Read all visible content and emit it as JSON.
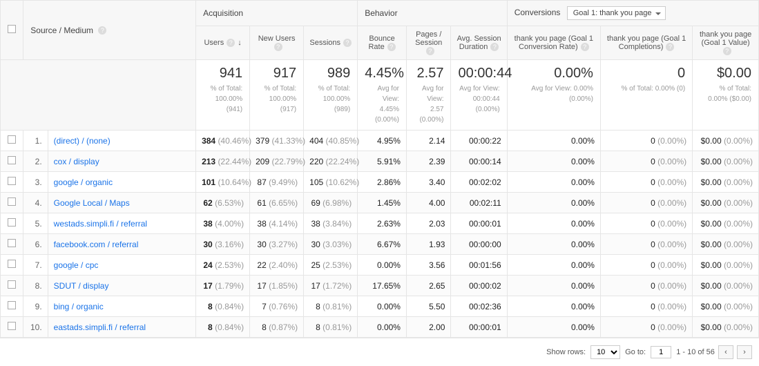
{
  "dimension": {
    "label": "Source / Medium"
  },
  "groups": {
    "acquisition": "Acquisition",
    "behavior": "Behavior",
    "conversions": "Conversions",
    "goal_selector": "Goal 1: thank you page"
  },
  "columns": {
    "users": {
      "label": "Users",
      "sorted": true
    },
    "new_users": {
      "label": "New Users"
    },
    "sessions": {
      "label": "Sessions"
    },
    "bounce": {
      "label": "Bounce Rate"
    },
    "pps": {
      "label": "Pages / Session"
    },
    "avgdur": {
      "label": "Avg. Session Duration"
    },
    "cvr": {
      "label": "thank you page (Goal 1 Conversion Rate)"
    },
    "compl": {
      "label": "thank you page (Goal 1 Completions)"
    },
    "value": {
      "label": "thank you page (Goal 1 Value)"
    }
  },
  "summary": {
    "users": {
      "v": "941",
      "sub": "% of Total: 100.00% (941)"
    },
    "new_users": {
      "v": "917",
      "sub": "% of Total: 100.00% (917)"
    },
    "sessions": {
      "v": "989",
      "sub": "% of Total: 100.00% (989)"
    },
    "bounce": {
      "v": "4.45%",
      "sub": "Avg for View: 4.45% (0.00%)"
    },
    "pps": {
      "v": "2.57",
      "sub": "Avg for View: 2.57 (0.00%)"
    },
    "avgdur": {
      "v": "00:00:44",
      "sub": "Avg for View: 00:00:44 (0.00%)"
    },
    "cvr": {
      "v": "0.00%",
      "sub": "Avg for View: 0.00% (0.00%)"
    },
    "compl": {
      "v": "0",
      "sub": "% of Total: 0.00% (0)"
    },
    "value": {
      "v": "$0.00",
      "sub": "% of Total: 0.00% ($0.00)"
    }
  },
  "rows": [
    {
      "n": "1.",
      "src": "(direct) / (none)",
      "users": "384",
      "users_p": "(40.46%)",
      "nu": "379",
      "nu_p": "(41.33%)",
      "s": "404",
      "s_p": "(40.85%)",
      "b": "4.95%",
      "pps": "2.14",
      "dur": "00:00:22",
      "cvr": "0.00%",
      "compl": "0",
      "compl_p": "(0.00%)",
      "val": "$0.00",
      "val_p": "(0.00%)"
    },
    {
      "n": "2.",
      "src": "cox / display",
      "users": "213",
      "users_p": "(22.44%)",
      "nu": "209",
      "nu_p": "(22.79%)",
      "s": "220",
      "s_p": "(22.24%)",
      "b": "5.91%",
      "pps": "2.39",
      "dur": "00:00:14",
      "cvr": "0.00%",
      "compl": "0",
      "compl_p": "(0.00%)",
      "val": "$0.00",
      "val_p": "(0.00%)"
    },
    {
      "n": "3.",
      "src": "google / organic",
      "users": "101",
      "users_p": "(10.64%)",
      "nu": "87",
      "nu_p": "(9.49%)",
      "s": "105",
      "s_p": "(10.62%)",
      "b": "2.86%",
      "pps": "3.40",
      "dur": "00:02:02",
      "cvr": "0.00%",
      "compl": "0",
      "compl_p": "(0.00%)",
      "val": "$0.00",
      "val_p": "(0.00%)"
    },
    {
      "n": "4.",
      "src": "Google Local / Maps",
      "users": "62",
      "users_p": "(6.53%)",
      "nu": "61",
      "nu_p": "(6.65%)",
      "s": "69",
      "s_p": "(6.98%)",
      "b": "1.45%",
      "pps": "4.00",
      "dur": "00:02:11",
      "cvr": "0.00%",
      "compl": "0",
      "compl_p": "(0.00%)",
      "val": "$0.00",
      "val_p": "(0.00%)"
    },
    {
      "n": "5.",
      "src": "westads.simpli.fi / referral",
      "users": "38",
      "users_p": "(4.00%)",
      "nu": "38",
      "nu_p": "(4.14%)",
      "s": "38",
      "s_p": "(3.84%)",
      "b": "2.63%",
      "pps": "2.03",
      "dur": "00:00:01",
      "cvr": "0.00%",
      "compl": "0",
      "compl_p": "(0.00%)",
      "val": "$0.00",
      "val_p": "(0.00%)"
    },
    {
      "n": "6.",
      "src": "facebook.com / referral",
      "users": "30",
      "users_p": "(3.16%)",
      "nu": "30",
      "nu_p": "(3.27%)",
      "s": "30",
      "s_p": "(3.03%)",
      "b": "6.67%",
      "pps": "1.93",
      "dur": "00:00:00",
      "cvr": "0.00%",
      "compl": "0",
      "compl_p": "(0.00%)",
      "val": "$0.00",
      "val_p": "(0.00%)"
    },
    {
      "n": "7.",
      "src": "google / cpc",
      "users": "24",
      "users_p": "(2.53%)",
      "nu": "22",
      "nu_p": "(2.40%)",
      "s": "25",
      "s_p": "(2.53%)",
      "b": "0.00%",
      "pps": "3.56",
      "dur": "00:01:56",
      "cvr": "0.00%",
      "compl": "0",
      "compl_p": "(0.00%)",
      "val": "$0.00",
      "val_p": "(0.00%)"
    },
    {
      "n": "8.",
      "src": "SDUT / display",
      "users": "17",
      "users_p": "(1.79%)",
      "nu": "17",
      "nu_p": "(1.85%)",
      "s": "17",
      "s_p": "(1.72%)",
      "b": "17.65%",
      "pps": "2.65",
      "dur": "00:00:02",
      "cvr": "0.00%",
      "compl": "0",
      "compl_p": "(0.00%)",
      "val": "$0.00",
      "val_p": "(0.00%)"
    },
    {
      "n": "9.",
      "src": "bing / organic",
      "users": "8",
      "users_p": "(0.84%)",
      "nu": "7",
      "nu_p": "(0.76%)",
      "s": "8",
      "s_p": "(0.81%)",
      "b": "0.00%",
      "pps": "5.50",
      "dur": "00:02:36",
      "cvr": "0.00%",
      "compl": "0",
      "compl_p": "(0.00%)",
      "val": "$0.00",
      "val_p": "(0.00%)"
    },
    {
      "n": "10.",
      "src": "eastads.simpli.fi / referral",
      "users": "8",
      "users_p": "(0.84%)",
      "nu": "8",
      "nu_p": "(0.87%)",
      "s": "8",
      "s_p": "(0.81%)",
      "b": "0.00%",
      "pps": "2.00",
      "dur": "00:00:01",
      "cvr": "0.00%",
      "compl": "0",
      "compl_p": "(0.00%)",
      "val": "$0.00",
      "val_p": "(0.00%)"
    }
  ],
  "footer": {
    "show_rows_label": "Show rows:",
    "show_rows_value": "10",
    "goto_label": "Go to:",
    "goto_value": "1",
    "range": "1 - 10 of 56"
  }
}
